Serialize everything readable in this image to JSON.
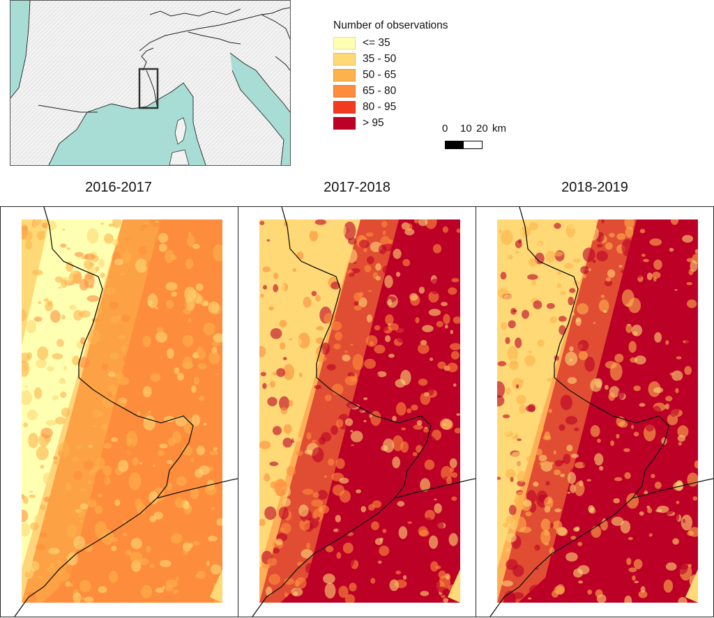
{
  "legend": {
    "title": "Number of observations",
    "items": [
      {
        "label": "<= 35",
        "color": "#ffffb2"
      },
      {
        "label": "35 - 50",
        "color": "#fed976"
      },
      {
        "label": "50 - 65",
        "color": "#feb24c"
      },
      {
        "label": "65 - 80",
        "color": "#fd8d3c"
      },
      {
        "label": "80 - 95",
        "color": "#f03b20"
      },
      {
        "label": "> 95",
        "color": "#bd0026"
      }
    ]
  },
  "scale_bar": {
    "labels": [
      "0",
      "10",
      "20",
      "km"
    ]
  },
  "panels": [
    {
      "title": "2016-2017"
    },
    {
      "title": "2017-2018"
    },
    {
      "title": "2018-2019"
    }
  ],
  "colors": {
    "sea": "#a8ddd5",
    "land": "#f2f2f2",
    "border": "#111111"
  }
}
